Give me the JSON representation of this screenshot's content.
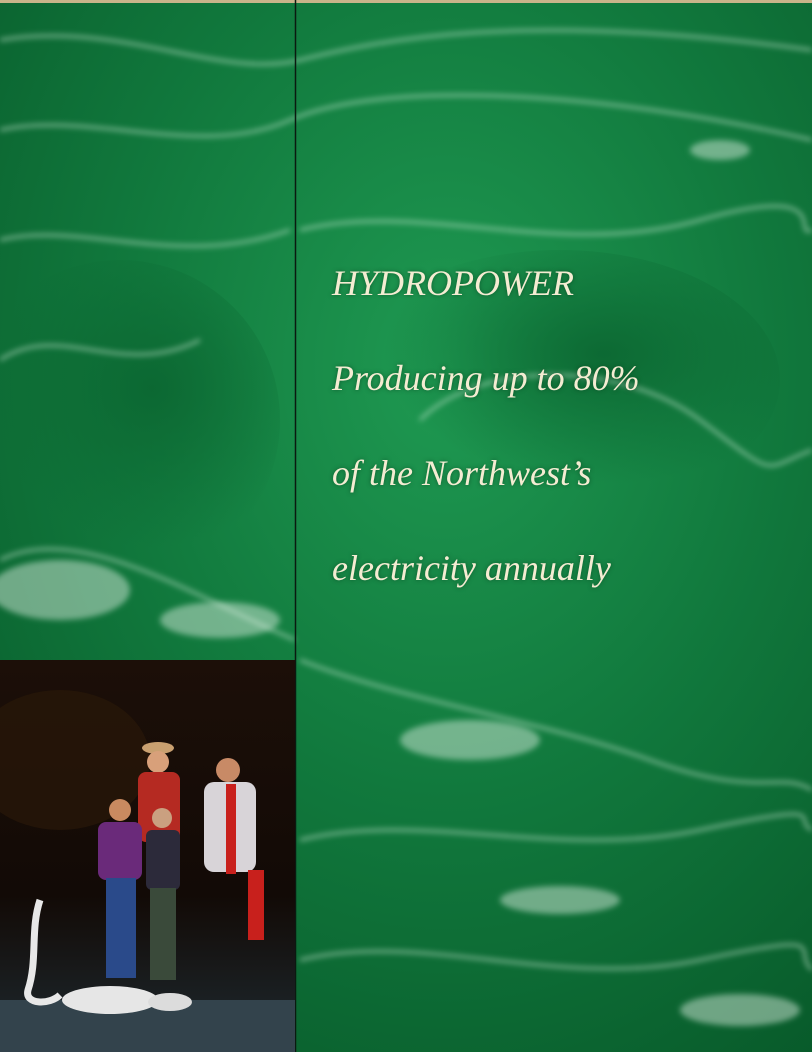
{
  "headline": "HYDROPOWER",
  "lines": [
    "Producing up to 80%",
    "of the Northwest’s",
    "electricity annually"
  ]
}
